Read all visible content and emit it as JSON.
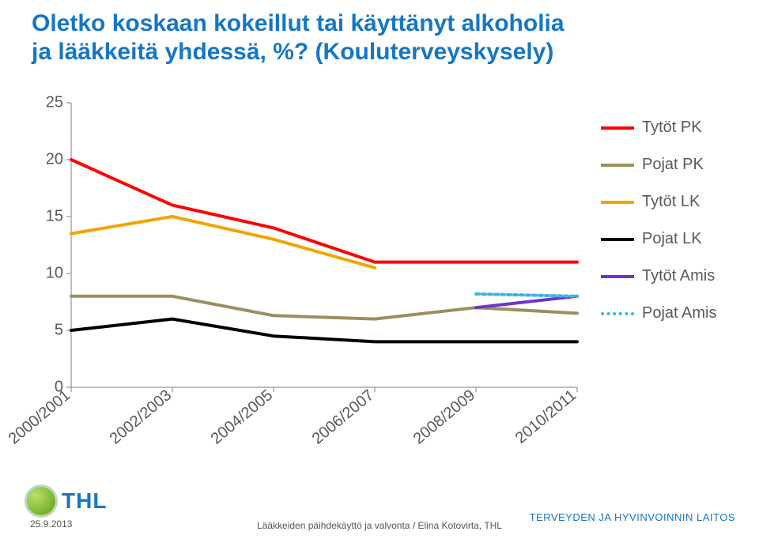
{
  "title_color": "#1776c3",
  "title_line1": "Oletko koskaan kokeillut tai käyttänyt alkoholia",
  "title_line2": "ja lääkkeitä yhdessä, %? (Kouluterveyskysely)",
  "chart": {
    "type": "line",
    "ylim": [
      0,
      25
    ],
    "ytick_step": 5,
    "yticks": [
      0,
      5,
      10,
      15,
      20,
      25
    ],
    "categories": [
      "2000/2001",
      "2002/2003",
      "2004/2005",
      "2006/2007",
      "2008/2009",
      "2010/2011"
    ],
    "series": [
      {
        "name": "Tytöt PK",
        "color": "#ff0000",
        "width": 4,
        "dash": "",
        "values": [
          20,
          16,
          14,
          11,
          11,
          11
        ]
      },
      {
        "name": "Pojat PK",
        "color": "#9c8e5d",
        "width": 4,
        "dash": "",
        "values": [
          8,
          8,
          6.3,
          6,
          7,
          6.5
        ]
      },
      {
        "name": "Tytöt LK",
        "color": "#f0a500",
        "width": 4,
        "dash": "",
        "values": [
          13.5,
          15,
          13,
          10.5,
          null,
          null
        ]
      },
      {
        "name": "Pojat LK",
        "color": "#000000",
        "width": 4,
        "dash": "",
        "values": [
          5,
          6,
          4.5,
          4,
          4,
          4
        ]
      },
      {
        "name": "Tytöt Amis",
        "color": "#7532c9",
        "width": 4,
        "dash": "",
        "values": [
          null,
          null,
          null,
          null,
          7,
          8
        ]
      },
      {
        "name": "Pojat Amis",
        "color": "#3eb2e6",
        "width": 4,
        "dash": "4 4",
        "values": [
          null,
          null,
          null,
          null,
          8.2,
          8
        ]
      }
    ],
    "axis_color": "#808080",
    "tick_font_size": 20,
    "tick_color": "#595959",
    "legend_font_size": 20,
    "legend_color": "#595959",
    "background": "#ffffff"
  },
  "footer": {
    "logo_text": "THL",
    "logo_text_color": "#1776c3",
    "org": "TERVEYDEN JA HYVINVOINNIN LAITOS",
    "date": "25.9.2013",
    "caption": "Lääkkeiden päihdekäyttö ja valvonta / Elina Kotovirta, THL"
  }
}
